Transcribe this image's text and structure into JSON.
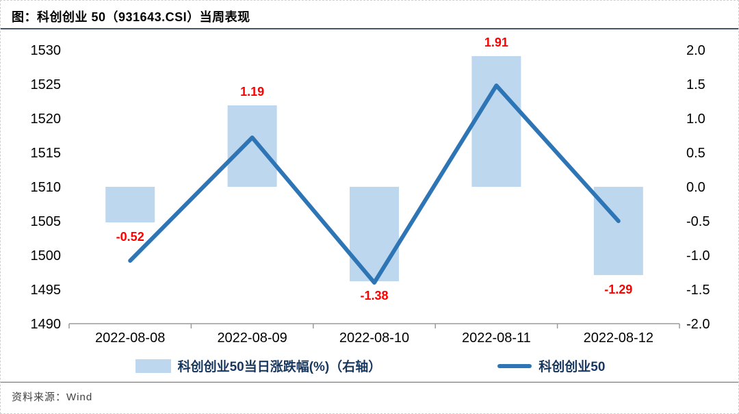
{
  "page": {
    "title": "图：科创创业 50（931643.CSI）当周表现",
    "source": "资料来源：Wind"
  },
  "colors": {
    "bar_fill": "#BDD7EE",
    "line": "#2E75B6",
    "value_label": "#FF0000",
    "axis_text": "#000000",
    "axis_line": "#9a9a9a",
    "legend_text": "#17375E",
    "title_rule": "#44546A"
  },
  "chart_data": {
    "type": "bar",
    "subtype": "bar-line-combo",
    "title": "图：科创创业 50（931643.CSI）当周表现",
    "categories": [
      "2022-08-08",
      "2022-08-09",
      "2022-08-10",
      "2022-08-11",
      "2022-08-12"
    ],
    "series": [
      {
        "name": "科创创业50当日涨跌幅(%)（右轴）",
        "type": "bar",
        "axis": "right",
        "values": [
          -0.52,
          1.19,
          -1.38,
          1.91,
          -1.29
        ],
        "labels": [
          "-0.52",
          "1.19",
          "-1.38",
          "1.91",
          "-1.29"
        ],
        "label_color": "#FF0000"
      },
      {
        "name": "科创创业50",
        "type": "line",
        "axis": "left",
        "values": [
          1499.2,
          1517.2,
          1496.0,
          1524.8,
          1505.0
        ]
      }
    ],
    "left_axis": {
      "min": 1490,
      "max": 1530,
      "step": 5,
      "ticks": [
        "1530",
        "1525",
        "1520",
        "1515",
        "1510",
        "1505",
        "1500",
        "1495",
        "1490"
      ]
    },
    "right_axis": {
      "min": -2.0,
      "max": 2.0,
      "step": 0.5,
      "ticks": [
        "2.0",
        "1.5",
        "1.0",
        "0.5",
        "0.0",
        "-0.5",
        "-1.0",
        "-1.5",
        "-2.0"
      ]
    },
    "grid": false,
    "legend_position": "bottom"
  }
}
